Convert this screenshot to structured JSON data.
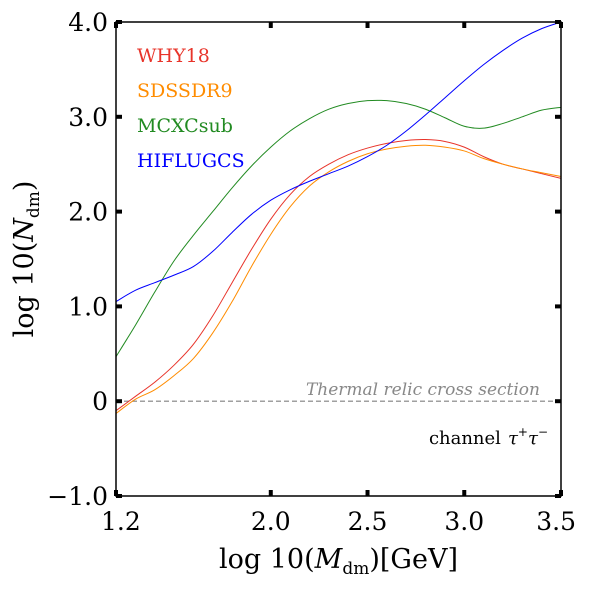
{
  "chart_data": {
    "type": "line",
    "xlabel": "log 10(M_dm)[GeV]",
    "xlabel_parts": {
      "pre": "log 10(",
      "var": "M",
      "sub": "dm",
      "post": ")[GeV]"
    },
    "ylabel": "log 10(N_dm)",
    "ylabel_parts": {
      "pre": "log 10(",
      "var": "N",
      "sub": "dm",
      "post": ")"
    },
    "xlim": [
      1.2,
      3.5
    ],
    "ylim": [
      -1.0,
      4.0
    ],
    "x_ticks": [
      1.2,
      2.0,
      2.5,
      3.0,
      3.5
    ],
    "x_tick_labels": [
      "1.2",
      "2.0",
      "2.5",
      "3.0",
      "3.5"
    ],
    "y_ticks": [
      -1.0,
      0,
      1.0,
      2.0,
      3.0,
      4.0
    ],
    "y_tick_labels": [
      "−1.0",
      "0",
      "1.0",
      "2.0",
      "3.0",
      "4.0"
    ],
    "legend_position": "top-left",
    "grid": false,
    "series": [
      {
        "name": "WHY18",
        "color": "#e8342a",
        "x": [
          1.2,
          1.3,
          1.4,
          1.5,
          1.6,
          1.7,
          1.8,
          1.9,
          2.0,
          2.1,
          2.2,
          2.3,
          2.4,
          2.5,
          2.6,
          2.7,
          2.8,
          2.9,
          3.0,
          3.1,
          3.2,
          3.3,
          3.4,
          3.5
        ],
        "values": [
          -0.1,
          0.05,
          0.2,
          0.38,
          0.6,
          0.9,
          1.25,
          1.6,
          1.92,
          2.18,
          2.37,
          2.5,
          2.6,
          2.67,
          2.72,
          2.75,
          2.76,
          2.74,
          2.68,
          2.58,
          2.5,
          2.45,
          2.4,
          2.35
        ]
      },
      {
        "name": "SDSSDR9",
        "color": "#ff8c00",
        "x": [
          1.2,
          1.3,
          1.4,
          1.5,
          1.6,
          1.7,
          1.8,
          1.9,
          2.0,
          2.1,
          2.2,
          2.3,
          2.4,
          2.5,
          2.6,
          2.7,
          2.8,
          2.9,
          3.0,
          3.1,
          3.2,
          3.3,
          3.4,
          3.5
        ],
        "values": [
          -0.13,
          0.02,
          0.12,
          0.27,
          0.45,
          0.72,
          1.05,
          1.42,
          1.76,
          2.05,
          2.27,
          2.42,
          2.53,
          2.61,
          2.66,
          2.69,
          2.7,
          2.68,
          2.64,
          2.56,
          2.5,
          2.45,
          2.41,
          2.37
        ]
      },
      {
        "name": "MCXCsub",
        "color": "#228b22",
        "x": [
          1.2,
          1.3,
          1.4,
          1.5,
          1.6,
          1.7,
          1.8,
          1.9,
          2.0,
          2.1,
          2.2,
          2.3,
          2.4,
          2.5,
          2.6,
          2.7,
          2.8,
          2.9,
          3.0,
          3.1,
          3.2,
          3.3,
          3.4,
          3.5
        ],
        "values": [
          0.47,
          0.8,
          1.15,
          1.48,
          1.75,
          2.0,
          2.25,
          2.48,
          2.68,
          2.85,
          2.98,
          3.08,
          3.14,
          3.17,
          3.17,
          3.14,
          3.08,
          2.99,
          2.9,
          2.88,
          2.93,
          3.0,
          3.07,
          3.1
        ]
      },
      {
        "name": "HIFLUGCS",
        "color": "#0000ff",
        "x": [
          1.2,
          1.3,
          1.4,
          1.5,
          1.6,
          1.7,
          1.8,
          1.9,
          2.0,
          2.1,
          2.2,
          2.3,
          2.4,
          2.5,
          2.6,
          2.7,
          2.8,
          2.9,
          3.0,
          3.1,
          3.2,
          3.3,
          3.4,
          3.5
        ],
        "values": [
          1.05,
          1.17,
          1.25,
          1.33,
          1.42,
          1.58,
          1.78,
          1.97,
          2.12,
          2.23,
          2.32,
          2.4,
          2.48,
          2.58,
          2.7,
          2.85,
          3.02,
          3.2,
          3.38,
          3.55,
          3.7,
          3.83,
          3.93,
          4.0
        ]
      }
    ],
    "reference_line": {
      "y": 0,
      "label": "Thermal relic cross section",
      "color": "#808080",
      "style": "dashed"
    },
    "annotation": {
      "text_plain": "channel",
      "text_math": "τ+τ−"
    }
  }
}
